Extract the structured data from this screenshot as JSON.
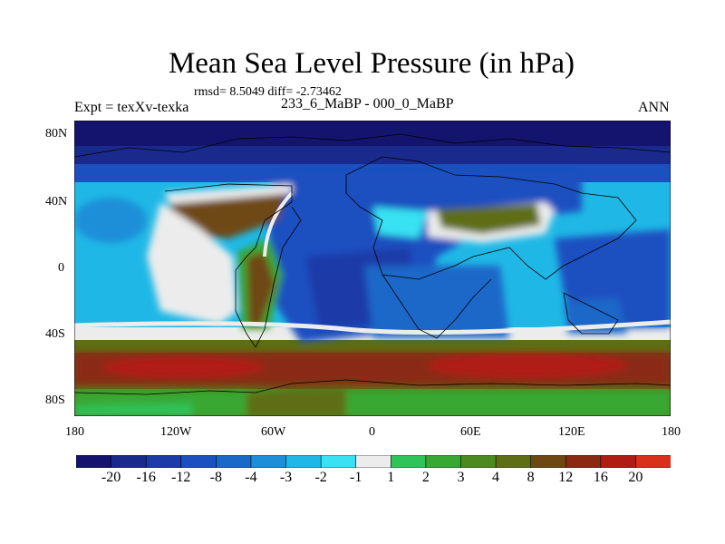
{
  "title": "Mean Sea Level Pressure (in hPa)",
  "stats": "rmsd= 8.5049 diff= -2.73462",
  "left_label": "Expt = texXv-texka",
  "center_label": "233_6_MaBP - 000_0_MaBP",
  "right_label": "ANN",
  "lat_labels": [
    "80N",
    "40N",
    "0",
    "40S",
    "80S"
  ],
  "lon_labels": [
    "180",
    "120W",
    "60W",
    "0",
    "60E",
    "120E",
    "180"
  ],
  "colorbar": {
    "colors": [
      "#14146e",
      "#1a2a8c",
      "#1c3aa8",
      "#1b50c0",
      "#1a68c8",
      "#1c8fd8",
      "#1fb8e6",
      "#38e2f2",
      "#ececec",
      "#2ec45a",
      "#37a832",
      "#4c8a20",
      "#5e6e14",
      "#6e4812",
      "#8a2a12",
      "#b01c14",
      "#d8301a"
    ],
    "labels": [
      "-20",
      "-16",
      "-12",
      "-8",
      "-4",
      "-3",
      "-2",
      "-1",
      "1",
      "2",
      "3",
      "4",
      "8",
      "12",
      "16",
      "20"
    ]
  }
}
